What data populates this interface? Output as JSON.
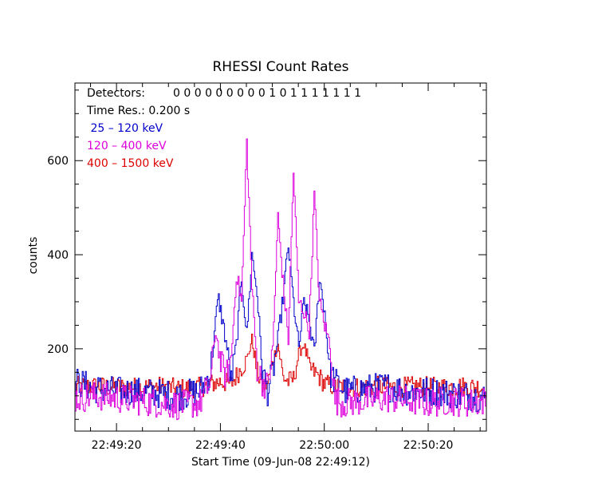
{
  "chart_data": {
    "type": "line",
    "title": "RHESSI Count Rates",
    "xlabel": "Start Time (09-Jun-08 22:49:12)",
    "ylabel": "counts",
    "x_unit": "seconds after 22:49:12",
    "xlim": [
      0,
      79.2
    ],
    "ylim": [
      25,
      765
    ],
    "y_ticks": [
      200,
      400,
      600
    ],
    "x_ticks": [
      {
        "t": 8,
        "label": "22:49:20"
      },
      {
        "t": 28,
        "label": "22:49:40"
      },
      {
        "t": 48,
        "label": "22:50:00"
      },
      {
        "t": 68,
        "label": "22:50:20"
      }
    ],
    "info": {
      "detectors_label": "Detectors:",
      "detectors_values": "0 0 0 0 0 0 0 0 0 1 0 1 1 1 1 1 1 1",
      "time_res": "Time Res.: 0.200 s"
    },
    "series": [
      {
        "name": "25 - 120 keV",
        "legend_label": " 25 – 120 keV",
        "color": "#0000cc",
        "points": [
          [
            0,
            130
          ],
          [
            4,
            115
          ],
          [
            8,
            110
          ],
          [
            12,
            108
          ],
          [
            16,
            105
          ],
          [
            20,
            100
          ],
          [
            24,
            110
          ],
          [
            26,
            150
          ],
          [
            27.5,
            310
          ],
          [
            28.5,
            250
          ],
          [
            29.5,
            180
          ],
          [
            30,
            130
          ],
          [
            31,
            210
          ],
          [
            32,
            350
          ],
          [
            33,
            230
          ],
          [
            34,
            400
          ],
          [
            35,
            320
          ],
          [
            36,
            150
          ],
          [
            37,
            110
          ],
          [
            38,
            150
          ],
          [
            39,
            220
          ],
          [
            40,
            310
          ],
          [
            41,
            420
          ],
          [
            42,
            300
          ],
          [
            43,
            200
          ],
          [
            44,
            300
          ],
          [
            45,
            260
          ],
          [
            46,
            190
          ],
          [
            47,
            350
          ],
          [
            48,
            280
          ],
          [
            49,
            150
          ],
          [
            50,
            130
          ],
          [
            52,
            110
          ],
          [
            56,
            115
          ],
          [
            60,
            120
          ],
          [
            64,
            110
          ],
          [
            68,
            110
          ],
          [
            72,
            105
          ],
          [
            76,
            100
          ],
          [
            79.2,
            95
          ]
        ]
      },
      {
        "name": "120 - 400 keV",
        "legend_label": "120 – 400 keV",
        "color": "#dd00dd",
        "points": [
          [
            0,
            95
          ],
          [
            4,
            100
          ],
          [
            8,
            95
          ],
          [
            12,
            90
          ],
          [
            16,
            85
          ],
          [
            20,
            80
          ],
          [
            24,
            85
          ],
          [
            26,
            130
          ],
          [
            27,
            240
          ],
          [
            28,
            170
          ],
          [
            29,
            140
          ],
          [
            30,
            180
          ],
          [
            31,
            360
          ],
          [
            32,
            300
          ],
          [
            33,
            640
          ],
          [
            34,
            330
          ],
          [
            35,
            160
          ],
          [
            36,
            130
          ],
          [
            37,
            120
          ],
          [
            38,
            200
          ],
          [
            39,
            480
          ],
          [
            40,
            340
          ],
          [
            41,
            220
          ],
          [
            42,
            580
          ],
          [
            43,
            300
          ],
          [
            44,
            280
          ],
          [
            45,
            240
          ],
          [
            46,
            530
          ],
          [
            47,
            300
          ],
          [
            48,
            250
          ],
          [
            49,
            210
          ],
          [
            50,
            90
          ],
          [
            52,
            85
          ],
          [
            56,
            90
          ],
          [
            60,
            95
          ],
          [
            64,
            90
          ],
          [
            68,
            85
          ],
          [
            72,
            90
          ],
          [
            76,
            85
          ],
          [
            79.2,
            90
          ]
        ]
      },
      {
        "name": "400 - 1500 keV",
        "legend_label": "400 – 1500 keV",
        "color": "#dd0000",
        "points": [
          [
            0,
            120
          ],
          [
            4,
            120
          ],
          [
            8,
            118
          ],
          [
            12,
            118
          ],
          [
            16,
            120
          ],
          [
            20,
            115
          ],
          [
            24,
            118
          ],
          [
            26,
            125
          ],
          [
            28,
            130
          ],
          [
            30,
            125
          ],
          [
            32,
            160
          ],
          [
            33,
            175
          ],
          [
            34,
            220
          ],
          [
            35,
            150
          ],
          [
            36,
            120
          ],
          [
            37,
            125
          ],
          [
            38,
            175
          ],
          [
            39,
            210
          ],
          [
            40,
            140
          ],
          [
            41,
            130
          ],
          [
            42,
            135
          ],
          [
            43,
            190
          ],
          [
            44,
            210
          ],
          [
            45,
            160
          ],
          [
            46,
            150
          ],
          [
            47,
            140
          ],
          [
            48,
            125
          ],
          [
            50,
            120
          ],
          [
            54,
            118
          ],
          [
            58,
            120
          ],
          [
            62,
            118
          ],
          [
            66,
            120
          ],
          [
            70,
            118
          ],
          [
            74,
            120
          ],
          [
            79.2,
            118
          ]
        ]
      }
    ]
  }
}
